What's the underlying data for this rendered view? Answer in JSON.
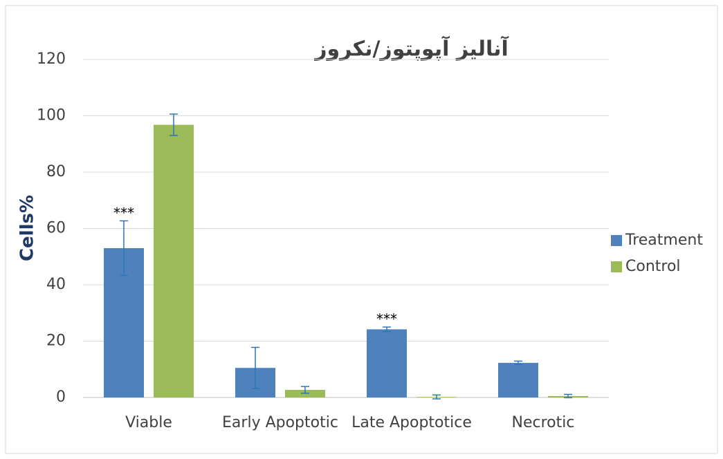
{
  "chart_data": {
    "type": "bar",
    "title": "آنالیز آپوپتوز/نکروز",
    "y_label": "Cells%",
    "categories": [
      "Viable",
      "Early Apoptotic",
      "Late Apoptotice",
      "Necrotic"
    ],
    "series": [
      {
        "name": "Treatment",
        "color": "#4f81bd",
        "values": [
          53,
          10.5,
          24.2,
          12.3
        ],
        "errors": [
          9.7,
          7.3,
          0.8,
          0.6
        ],
        "annotations": [
          "***",
          null,
          "***",
          null
        ]
      },
      {
        "name": "Control",
        "color": "#9bbb59",
        "values": [
          96.8,
          2.7,
          0.2,
          0.5
        ],
        "errors": [
          3.8,
          1.2,
          0.7,
          0.6
        ]
      }
    ],
    "ylim": [
      0,
      120
    ],
    "yticks": [
      0,
      20,
      40,
      60,
      80,
      100,
      120
    ],
    "grid": true,
    "legend": "right"
  }
}
